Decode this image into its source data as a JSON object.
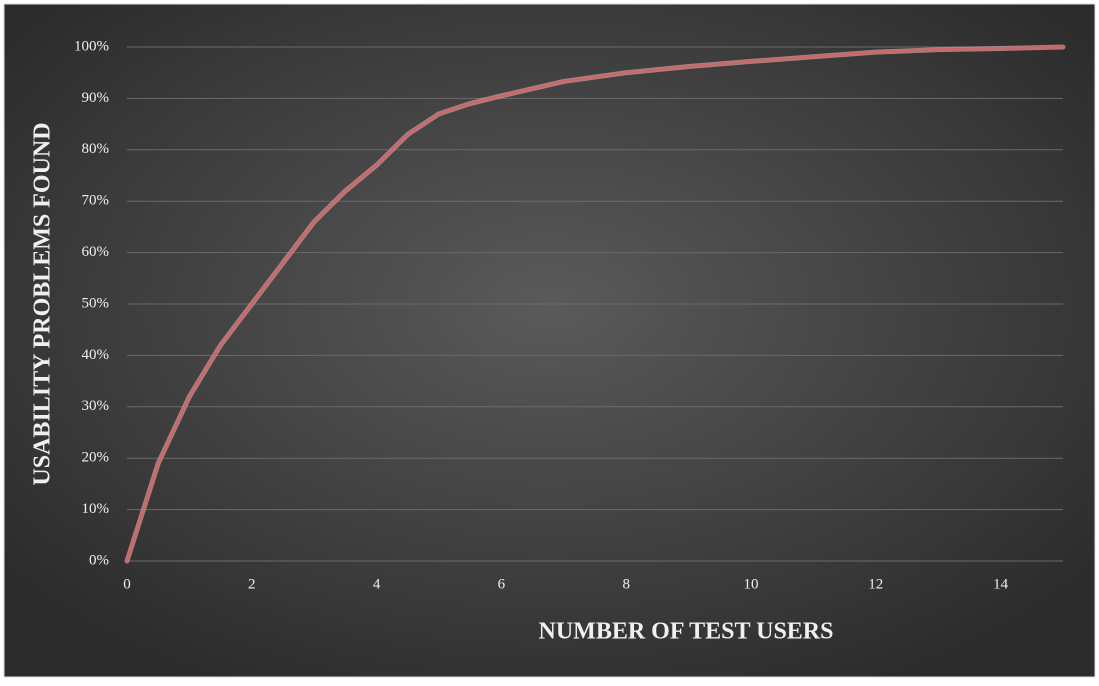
{
  "chart_data": {
    "type": "line",
    "x_label": "NUMBER OF TEST USERS",
    "y_label": "USABILITY PROBLEMS FOUND",
    "x": [
      0,
      0.5,
      1,
      1.5,
      2,
      2.5,
      3,
      3.5,
      4,
      4.5,
      5,
      5.5,
      6,
      7,
      8,
      9,
      10,
      11,
      12,
      13,
      14,
      15
    ],
    "series": [
      {
        "color": "#c9696c",
        "values": [
          0,
          19,
          32,
          42,
          50,
          58,
          66,
          72,
          77,
          83,
          87,
          89,
          90.5,
          93.3,
          95,
          96.2,
          97.2,
          98.1,
          99,
          99.5,
          99.7,
          100
        ]
      }
    ],
    "xlim": [
      0,
      15
    ],
    "xticks": [
      0,
      2,
      4,
      6,
      8,
      10,
      12,
      14
    ],
    "ylim": [
      0,
      100
    ],
    "yticks": [
      {
        "value": 0,
        "label": "0%"
      },
      {
        "value": 10,
        "label": "10%"
      },
      {
        "value": 20,
        "label": "20%"
      },
      {
        "value": 30,
        "label": "30%"
      },
      {
        "value": 40,
        "label": "40%"
      },
      {
        "value": 50,
        "label": "50%"
      },
      {
        "value": 60,
        "label": "60%"
      },
      {
        "value": 70,
        "label": "70%"
      },
      {
        "value": 80,
        "label": "80%"
      },
      {
        "value": 90,
        "label": "90%"
      },
      {
        "value": 100,
        "label": "100%"
      }
    ],
    "grid": true
  }
}
